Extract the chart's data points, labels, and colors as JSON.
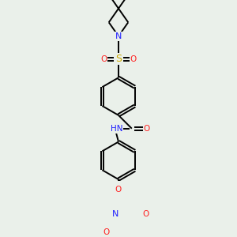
{
  "bg_color": "#eaf0ea",
  "atom_colors": {
    "C": "#000000",
    "N": "#2020ff",
    "O": "#ff2020",
    "S": "#ccaa00",
    "H": "#000000"
  },
  "line_color": "#000000",
  "line_width": 1.4,
  "figsize": [
    3.0,
    3.0
  ],
  "dpi": 100,
  "scale": 1.0
}
